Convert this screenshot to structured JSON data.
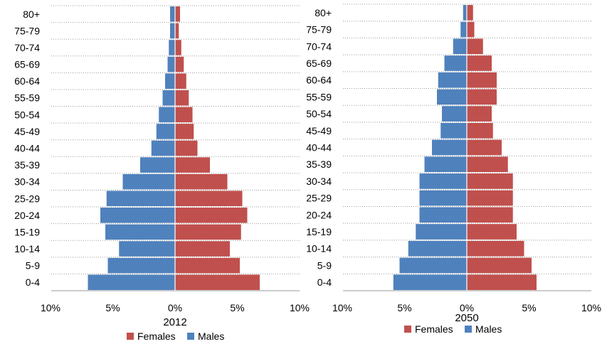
{
  "chart_data": [
    {
      "type": "bar",
      "orientation": "horizontal",
      "title": "2012",
      "categories": [
        "0-4",
        "5-9",
        "10-14",
        "15-19",
        "20-24",
        "25-29",
        "30-34",
        "35-39",
        "40-44",
        "45-49",
        "50-54",
        "55-59",
        "60-64",
        "65-69",
        "70-74",
        "75-79",
        "80+"
      ],
      "series": [
        {
          "name": "Females",
          "color": "#c0504d",
          "values": [
            6.8,
            5.2,
            4.4,
            5.3,
            5.8,
            5.4,
            4.2,
            2.8,
            1.8,
            1.5,
            1.4,
            1.1,
            0.9,
            0.7,
            0.5,
            0.3,
            0.4
          ]
        },
        {
          "name": "Males",
          "color": "#4f81bd",
          "values": [
            7.0,
            5.4,
            4.5,
            5.6,
            6.0,
            5.5,
            4.2,
            2.8,
            1.9,
            1.5,
            1.3,
            1.0,
            0.8,
            0.6,
            0.5,
            0.4,
            0.4
          ]
        }
      ],
      "x_ticks": [
        "10%",
        "5%",
        "0%",
        "5%",
        "10%"
      ],
      "xlim": [
        -10,
        10
      ],
      "legend_position": "bottom",
      "grid": true
    },
    {
      "type": "bar",
      "orientation": "horizontal",
      "title": "2050",
      "categories": [
        "0-4",
        "5-9",
        "10-14",
        "15-19",
        "20-24",
        "25-29",
        "30-34",
        "35-39",
        "40-44",
        "45-49",
        "50-54",
        "55-59",
        "60-64",
        "65-69",
        "70-74",
        "75-79",
        "80+"
      ],
      "series": [
        {
          "name": "Females",
          "color": "#c0504d",
          "values": [
            5.6,
            5.2,
            4.6,
            4.0,
            3.7,
            3.7,
            3.7,
            3.3,
            2.8,
            2.1,
            2.0,
            2.4,
            2.4,
            2.0,
            1.3,
            0.6,
            0.5
          ]
        },
        {
          "name": "Males",
          "color": "#4f81bd",
          "values": [
            5.9,
            5.4,
            4.7,
            4.1,
            3.8,
            3.8,
            3.8,
            3.4,
            2.8,
            2.1,
            2.0,
            2.4,
            2.3,
            1.8,
            1.1,
            0.5,
            0.3
          ]
        }
      ],
      "x_ticks": [
        "10%",
        "5%",
        "0%",
        "5%",
        "10%"
      ],
      "xlim": [
        -10,
        10
      ],
      "legend_position": "bottom",
      "grid": true
    }
  ]
}
